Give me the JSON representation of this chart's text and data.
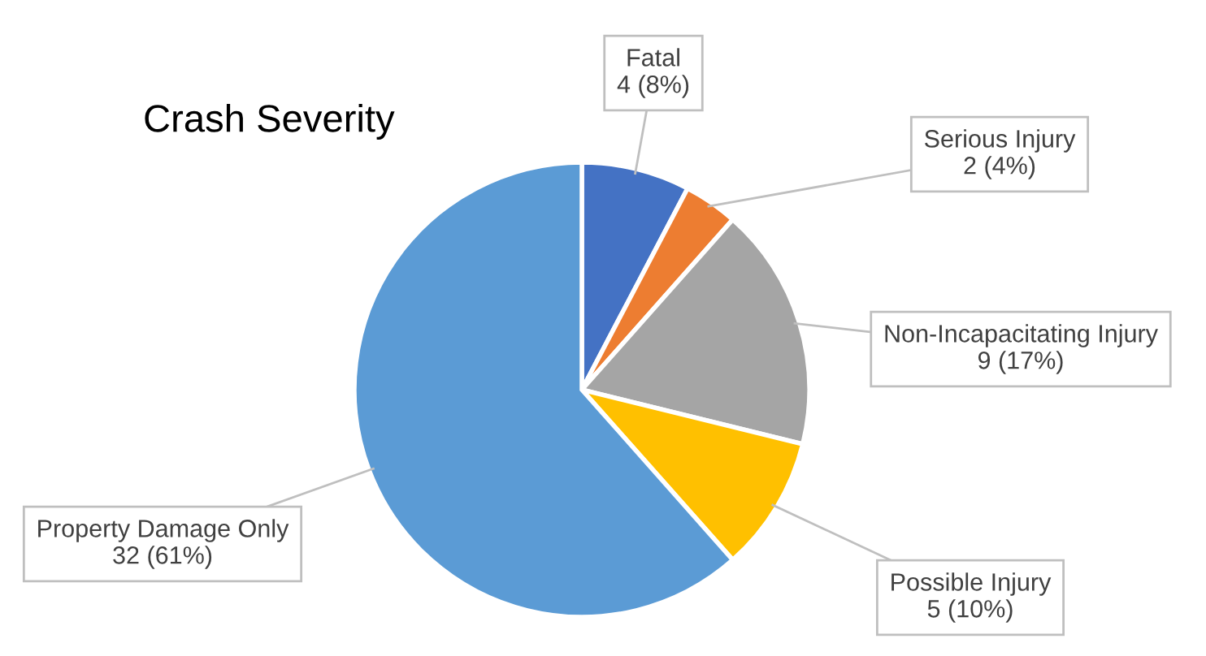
{
  "chart_data": {
    "type": "pie",
    "title": "Crash Severity",
    "categories": [
      "Fatal",
      "Serious Injury",
      "Non-Incapacitating Injury",
      "Possible Injury",
      "Property Damage Only"
    ],
    "values": [
      4,
      2,
      9,
      5,
      32
    ],
    "value_labels": [
      "4 (8%)",
      "2 (4%)",
      "9 (17%)",
      "5 (10%)",
      "32 (61%)"
    ],
    "colors": [
      "#4472c4",
      "#ed7d31",
      "#a5a5a5",
      "#ffc000",
      "#5b9bd5"
    ],
    "legend": false
  }
}
